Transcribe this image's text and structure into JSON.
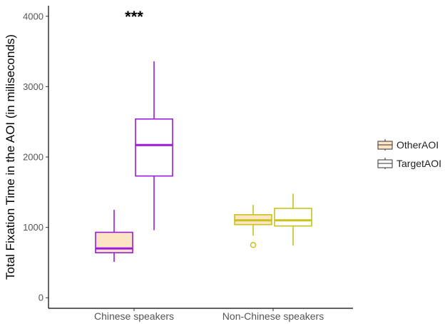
{
  "chart_data": {
    "type": "box",
    "ylabel": "Total Fixation Time in the AOI (in miliseconds)",
    "ylim": [
      -150,
      4150
    ],
    "yticks": [
      0,
      1000,
      2000,
      3000,
      4000
    ],
    "categories": [
      "Chinese speakers",
      "Non-Chinese speakers"
    ],
    "category_colors": [
      "#9B19E0",
      "#C8C21A"
    ],
    "series": [
      {
        "name": "OtherAOI",
        "fill": "#FCE4C4",
        "boxes": [
          {
            "category": "Chinese speakers",
            "min": 510,
            "q1": 640,
            "median": 700,
            "q3": 930,
            "max": 1250,
            "outliers": []
          },
          {
            "category": "Non-Chinese speakers",
            "min": 880,
            "q1": 1040,
            "median": 1100,
            "q3": 1180,
            "max": 1320,
            "outliers": [
              750
            ]
          }
        ]
      },
      {
        "name": "TargetAOI",
        "fill": "#FFFFFF",
        "boxes": [
          {
            "category": "Chinese speakers",
            "min": 960,
            "q1": 1730,
            "median": 2170,
            "q3": 2540,
            "max": 3360,
            "outliers": []
          },
          {
            "category": "Non-Chinese speakers",
            "min": 740,
            "q1": 1020,
            "median": 1100,
            "q3": 1270,
            "max": 1480,
            "outliers": []
          }
        ]
      }
    ],
    "annotations": [
      {
        "text": "***",
        "category": "Chinese speakers",
        "y": 4000
      }
    ],
    "legend": {
      "position": "right",
      "entries": [
        "OtherAOI",
        "TargetAOI"
      ]
    },
    "grid": false
  }
}
